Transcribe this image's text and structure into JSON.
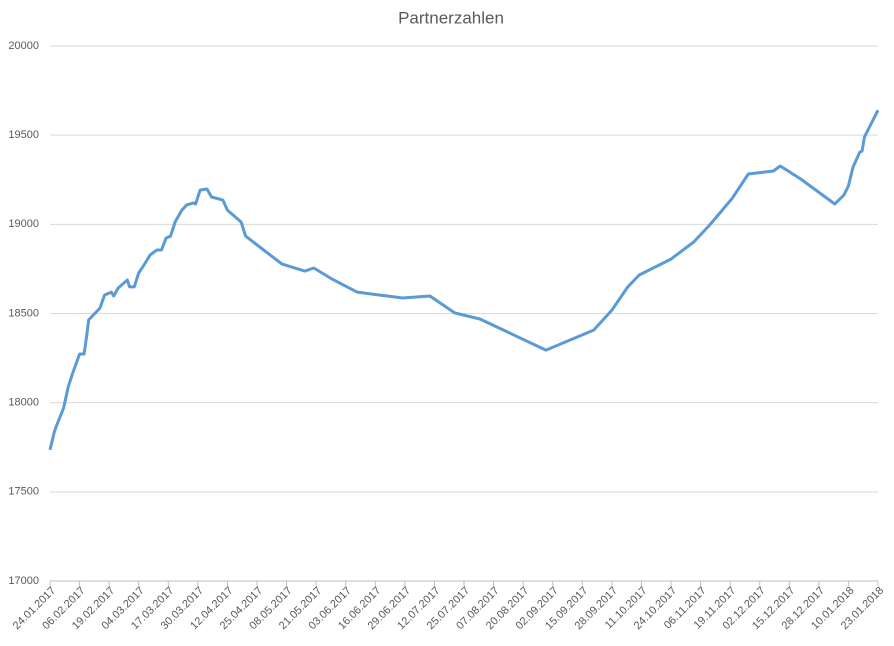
{
  "chart_data": {
    "type": "line",
    "title": "Partnerzahlen",
    "x": [
      "24.01.2017",
      "26.01.2017",
      "27.01.2017",
      "30.01.2017",
      "01.02.2017",
      "03.02.2017",
      "06.02.2017",
      "08.02.2017",
      "09.02.2017",
      "10.02.2017",
      "15.02.2017",
      "17.02.2017",
      "20.02.2017",
      "21.02.2017",
      "23.02.2017",
      "27.02.2017",
      "28.02.2017",
      "02.03.2017",
      "04.03.2017",
      "06.03.2017",
      "09.03.2017",
      "12.03.2017",
      "14.03.2017",
      "16.03.2017",
      "18.03.2017",
      "20.03.2017",
      "23.03.2017",
      "25.03.2017",
      "28.03.2017",
      "29.03.2017",
      "31.03.2017",
      "03.04.2017",
      "05.04.2017",
      "10.04.2017",
      "12.04.2017",
      "18.04.2017",
      "20.04.2017",
      "06.05.2017",
      "16.05.2017",
      "20.05.2017",
      "28.05.2017",
      "08.06.2017",
      "28.06.2017",
      "10.07.2017",
      "21.07.2017",
      "01.08.2017",
      "30.08.2017",
      "20.09.2017",
      "28.09.2017",
      "05.10.2017",
      "10.10.2017",
      "24.10.2017",
      "03.11.2017",
      "10.11.2017",
      "20.11.2017",
      "27.11.2017",
      "08.12.2017",
      "11.12.2017",
      "20.12.2017",
      "04.01.2018",
      "08.01.2018",
      "10.01.2018",
      "12.01.2018",
      "15.01.2018",
      "16.01.2018",
      "17.01.2018",
      "23.01.2018"
    ],
    "series": [
      {
        "color": "#5b9bd5",
        "values": [
          17735,
          17840,
          17875,
          17970,
          18088,
          18166,
          18273,
          18273,
          18363,
          18464,
          18531,
          18604,
          18620,
          18598,
          18643,
          18688,
          18649,
          18649,
          18727,
          18766,
          18828,
          18856,
          18856,
          18923,
          18934,
          19013,
          19080,
          19108,
          19120,
          19114,
          19192,
          19198,
          19153,
          19136,
          19080,
          19013,
          18934,
          18777,
          18738,
          18755,
          18693,
          18620,
          18587,
          18598,
          18503,
          18469,
          18295,
          18407,
          18519,
          18649,
          18716,
          18805,
          18901,
          18996,
          19147,
          19282,
          19299,
          19327,
          19254,
          19114,
          19164,
          19215,
          19321,
          19405,
          19411,
          19489,
          19640
        ]
      }
    ],
    "xlim": [
      "24.01.2017",
      "23.01.2018"
    ],
    "xticks": [
      "24.01.2017",
      "06.02.2017",
      "19.02.2017",
      "04.03.2017",
      "17.03.2017",
      "30.03.2017",
      "12.04.2017",
      "25.04.2017",
      "08.05.2017",
      "21.05.2017",
      "03.06.2017",
      "16.06.2017",
      "29.06.2017",
      "12.07.2017",
      "25.07.2017",
      "07.08.2017",
      "20.08.2017",
      "02.09.2017",
      "15.09.2017",
      "28.09.2017",
      "11.10.2017",
      "24.10.2017",
      "06.11.2017",
      "19.11.2017",
      "02.12.2017",
      "15.12.2017",
      "28.12.2017",
      "10.01.2018",
      "23.01.2018"
    ],
    "ylim": [
      17000,
      20000
    ],
    "yticks": [
      17000,
      17500,
      18000,
      18500,
      19000,
      19500,
      20000
    ],
    "grid": true
  }
}
